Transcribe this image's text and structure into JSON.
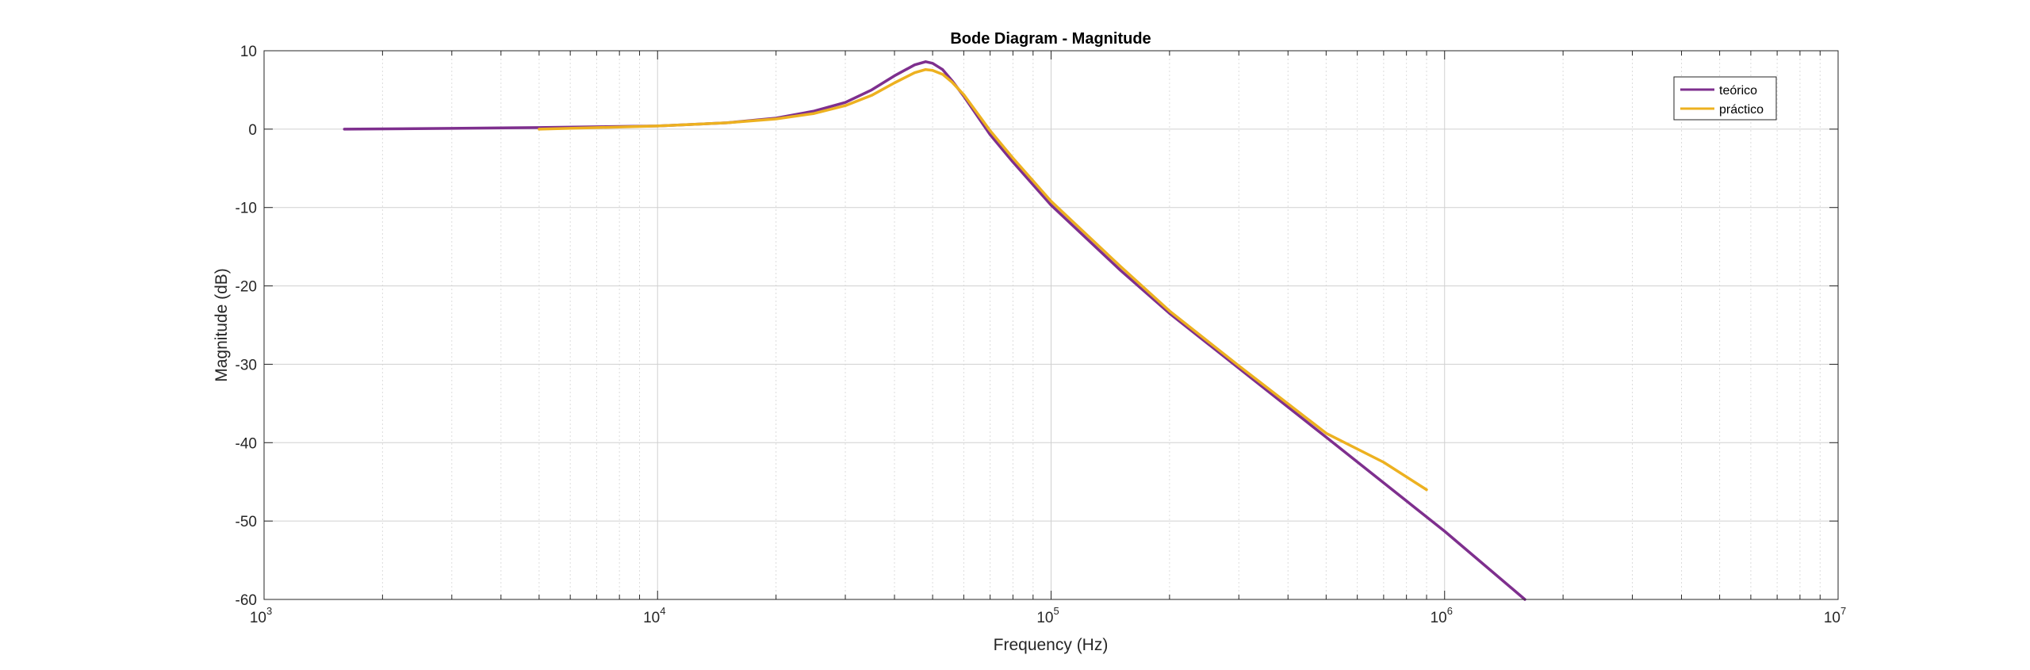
{
  "chart_data": {
    "type": "line",
    "title": "Bode Diagram - Magnitude",
    "xlabel": "Frequency (Hz)",
    "ylabel": "Magnitude (dB)",
    "xscale": "log",
    "xlim": [
      1000,
      10000000
    ],
    "ylim": [
      -60,
      10
    ],
    "grid": true,
    "minor_grid": true,
    "legend_position": "top-right",
    "yticks": [
      10,
      0,
      -10,
      -20,
      -30,
      -40,
      -50,
      -60
    ],
    "yticklabels": [
      "10",
      "0",
      "-10",
      "-20",
      "-30",
      "-40",
      "-50",
      "-60"
    ],
    "xticks": [
      {
        "value": 1000,
        "base": "10",
        "exp": "3"
      },
      {
        "value": 10000,
        "base": "10",
        "exp": "4"
      },
      {
        "value": 100000,
        "base": "10",
        "exp": "5"
      },
      {
        "value": 1000000,
        "base": "10",
        "exp": "6"
      },
      {
        "value": 10000000,
        "base": "10",
        "exp": "7"
      }
    ],
    "series": [
      {
        "name": "teórico",
        "color": "#7E2F8E",
        "x": [
          1600,
          3000,
          5000,
          10000,
          15000,
          20000,
          25000,
          30000,
          35000,
          40000,
          45000,
          48000,
          50000,
          53000,
          56000,
          60000,
          70000,
          80000,
          100000,
          150000,
          200000,
          300000,
          500000,
          1000000,
          1600000
        ],
        "y": [
          0,
          0.1,
          0.2,
          0.4,
          0.8,
          1.4,
          2.3,
          3.4,
          5.0,
          6.8,
          8.2,
          8.6,
          8.4,
          7.6,
          6.2,
          4.2,
          -0.7,
          -4.2,
          -9.7,
          -18.0,
          -23.5,
          -30.5,
          -39.3,
          -51.3,
          -60
        ]
      },
      {
        "name": "práctico",
        "color": "#EDB120",
        "x": [
          5000,
          10000,
          15000,
          20000,
          25000,
          30000,
          35000,
          40000,
          45000,
          48000,
          50000,
          53000,
          56000,
          60000,
          70000,
          80000,
          100000,
          150000,
          200000,
          300000,
          500000,
          700000,
          900000
        ],
        "y": [
          0,
          0.4,
          0.8,
          1.3,
          2.0,
          3.0,
          4.3,
          5.9,
          7.2,
          7.6,
          7.5,
          7.0,
          6.0,
          4.4,
          -0.2,
          -3.7,
          -9.2,
          -17.5,
          -23.2,
          -30.2,
          -38.8,
          -42.5,
          -46.0
        ]
      }
    ]
  }
}
